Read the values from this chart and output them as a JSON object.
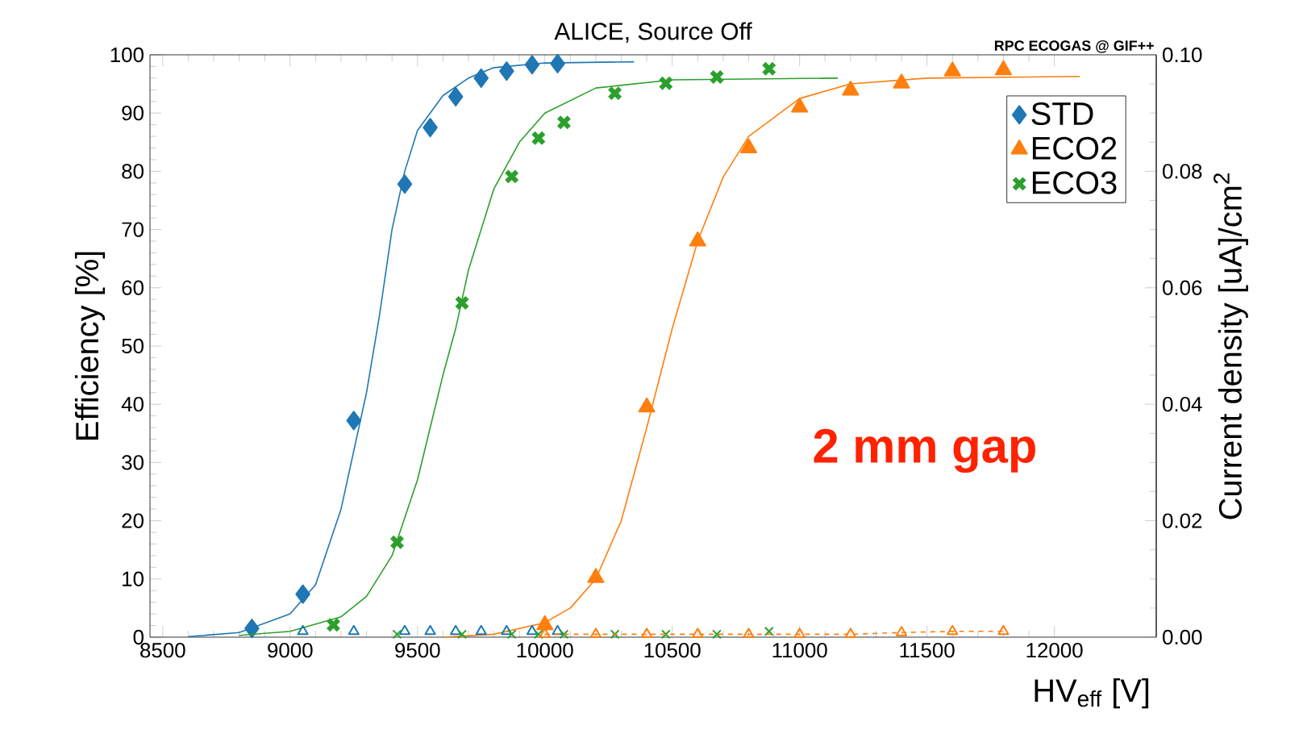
{
  "chart_data": {
    "type": "scatter",
    "title": "ALICE, Source Off",
    "xlabel": "HV$_{eff}$ [V]",
    "ylabel": "Efficiency [%]",
    "y2label": "Current density [uA]/cm$^{2}$",
    "annotations": [
      "RPC ECOGAS @ GIF++",
      "2 mm gap"
    ],
    "xlim": [
      8450,
      12400
    ],
    "xticks": [
      8500,
      9000,
      9500,
      10000,
      10500,
      11000,
      11500,
      12000
    ],
    "ylim": [
      0,
      100
    ],
    "yticks": [
      0,
      10,
      20,
      30,
      40,
      50,
      60,
      70,
      80,
      90,
      100
    ],
    "y2lim": [
      0,
      0.1
    ],
    "y2ticks": [
      {
        "value": 0,
        "label": "0.00"
      },
      {
        "value": 0.02,
        "label": "0.02"
      },
      {
        "value": 0.04,
        "label": "0.04"
      },
      {
        "value": 0.06,
        "label": "0.06"
      },
      {
        "value": 0.08,
        "label": "0.08"
      },
      {
        "value": 0.1,
        "label": "0.10"
      }
    ],
    "grid": false,
    "legend": "top right",
    "series": [
      {
        "name": "STD",
        "marker": "diamond",
        "color": "#1f77b4",
        "x": [
          8850,
          9050,
          9250,
          9450,
          9550,
          9650,
          9750,
          9850,
          9950,
          10050
        ],
        "values": [
          1.5,
          7.4,
          37.2,
          77.8,
          87.5,
          92.8,
          96,
          97.2,
          98.3,
          98.5
        ]
      },
      {
        "name": "ECO2",
        "marker": "triangle",
        "color": "#ff7f0e",
        "x": [
          10000,
          10200,
          10400,
          10600,
          10800,
          11000,
          11200,
          11400,
          11600,
          11800
        ],
        "values": [
          2.1,
          10.2,
          39.5,
          68,
          84,
          91,
          93.9,
          95.1,
          97.2,
          97.4
        ]
      },
      {
        "name": "ECO3",
        "marker": "cross",
        "color": "#2ca02c",
        "x": [
          9170,
          9420,
          9675,
          9870,
          9975,
          10075,
          10275,
          10475,
          10675,
          10880
        ],
        "values": [
          2.1,
          16.3,
          57.4,
          79.1,
          85.7,
          88.4,
          93.4,
          95.1,
          96.2,
          97.6
        ]
      },
      {
        "type": "line",
        "marker": "none",
        "color": "#1f77b4",
        "x": [
          8600,
          8800,
          9000,
          9100,
          9200,
          9300,
          9350,
          9400,
          9450,
          9500,
          9600,
          9700,
          9800,
          10000,
          10350
        ],
        "values": [
          0.1,
          0.8,
          4,
          9,
          22,
          42,
          55,
          70,
          80,
          87,
          93,
          96,
          97.8,
          98.6,
          98.8
        ]
      },
      {
        "type": "line",
        "marker": "none",
        "color": "#2ca02c",
        "x": [
          8800,
          9000,
          9200,
          9300,
          9400,
          9500,
          9600,
          9650,
          9700,
          9800,
          9900,
          10000,
          10200,
          10500,
          11150
        ],
        "values": [
          0.3,
          1,
          3.5,
          7,
          14,
          27,
          45,
          53,
          63,
          77,
          85,
          90,
          94.3,
          95.7,
          96
        ]
      },
      {
        "type": "line",
        "marker": "none",
        "color": "#ff7f0e",
        "x": [
          9600,
          9800,
          10000,
          10100,
          10200,
          10300,
          10400,
          10500,
          10600,
          10700,
          10800,
          11000,
          11200,
          11500,
          12100
        ],
        "values": [
          0,
          0.5,
          2.5,
          5,
          10,
          20,
          36,
          53,
          68,
          79,
          86,
          92.5,
          95,
          96,
          96.3
        ]
      },
      {
        "axis": "y2",
        "marker": "triangle",
        "color": "#1f77b4",
        "x": [
          9050,
          9250,
          9450,
          9550,
          9650,
          9750,
          9850,
          9950,
          10050
        ],
        "values": [
          0.001,
          0.001,
          0.001,
          0.001,
          0.001,
          0.001,
          0.001,
          0.001,
          0.001
        ]
      },
      {
        "axis": "y2",
        "marker": "cross",
        "color": "#2ca02c",
        "x": [
          9420,
          9675,
          9870,
          9975,
          10075,
          10275,
          10475,
          10675,
          10880
        ],
        "values": [
          0.0005,
          0.0005,
          0.0005,
          0.0005,
          0.0005,
          0.0005,
          0.0005,
          0.0005,
          0.001
        ]
      },
      {
        "type": "line",
        "axis": "y2",
        "marker": "triangle",
        "line_style": "dashed",
        "color": "#ff7f0e",
        "x": [
          10000,
          10200,
          10400,
          10600,
          10800,
          11000,
          11200,
          11400,
          11600,
          11800
        ],
        "values": [
          0.0005,
          0.0005,
          0.0005,
          0.0005,
          0.0005,
          0.0005,
          0.0005,
          0.0008,
          0.001,
          0.001
        ]
      }
    ]
  }
}
